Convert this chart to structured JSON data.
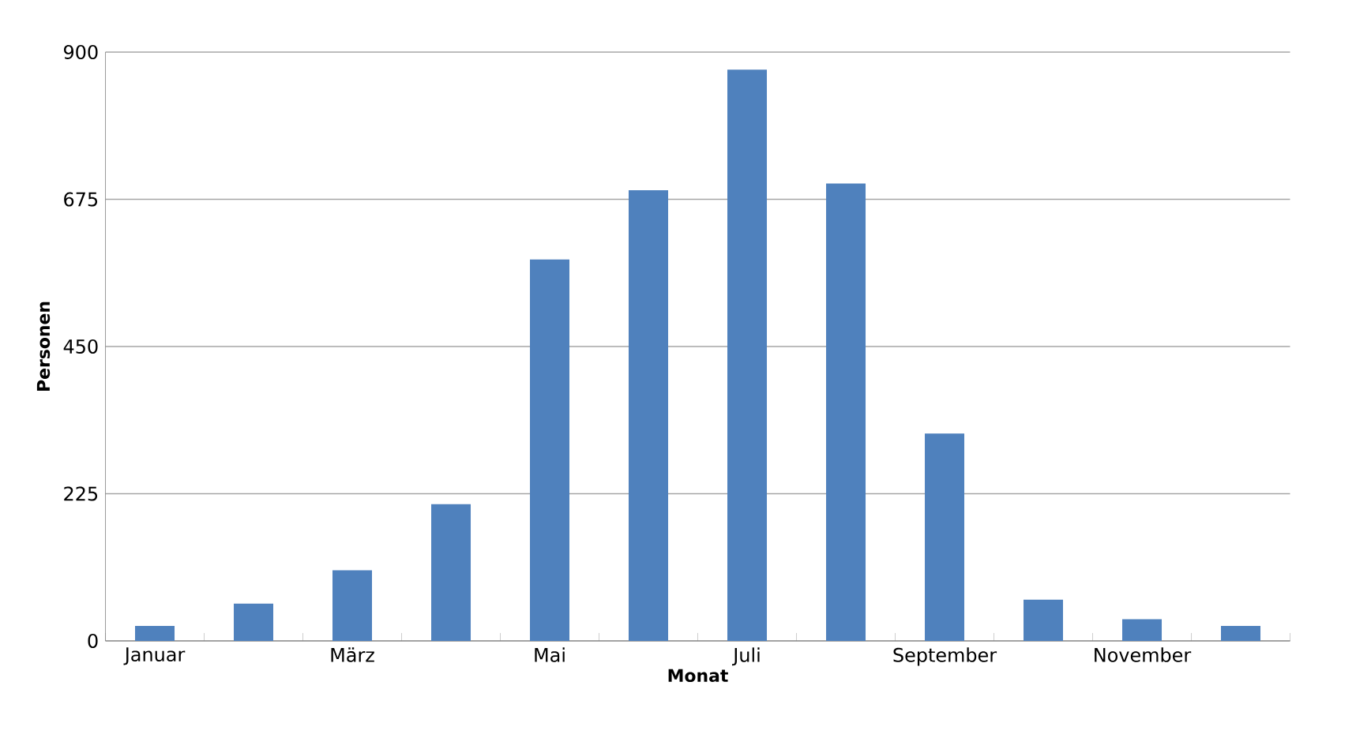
{
  "chart_data": {
    "type": "bar",
    "xlabel": "Monat",
    "ylabel": "Personen",
    "categories": [
      "Januar",
      null,
      "März",
      null,
      "Mai",
      null,
      "Juli",
      null,
      "September",
      null,
      "November",
      null
    ],
    "values": [
      23,
      57,
      108,
      209,
      583,
      689,
      873,
      699,
      317,
      63,
      33,
      23
    ],
    "color": "#4f81bd",
    "ylim": [
      0,
      900
    ],
    "yticks": [
      0,
      225,
      450,
      675,
      900
    ],
    "grid": "y"
  }
}
